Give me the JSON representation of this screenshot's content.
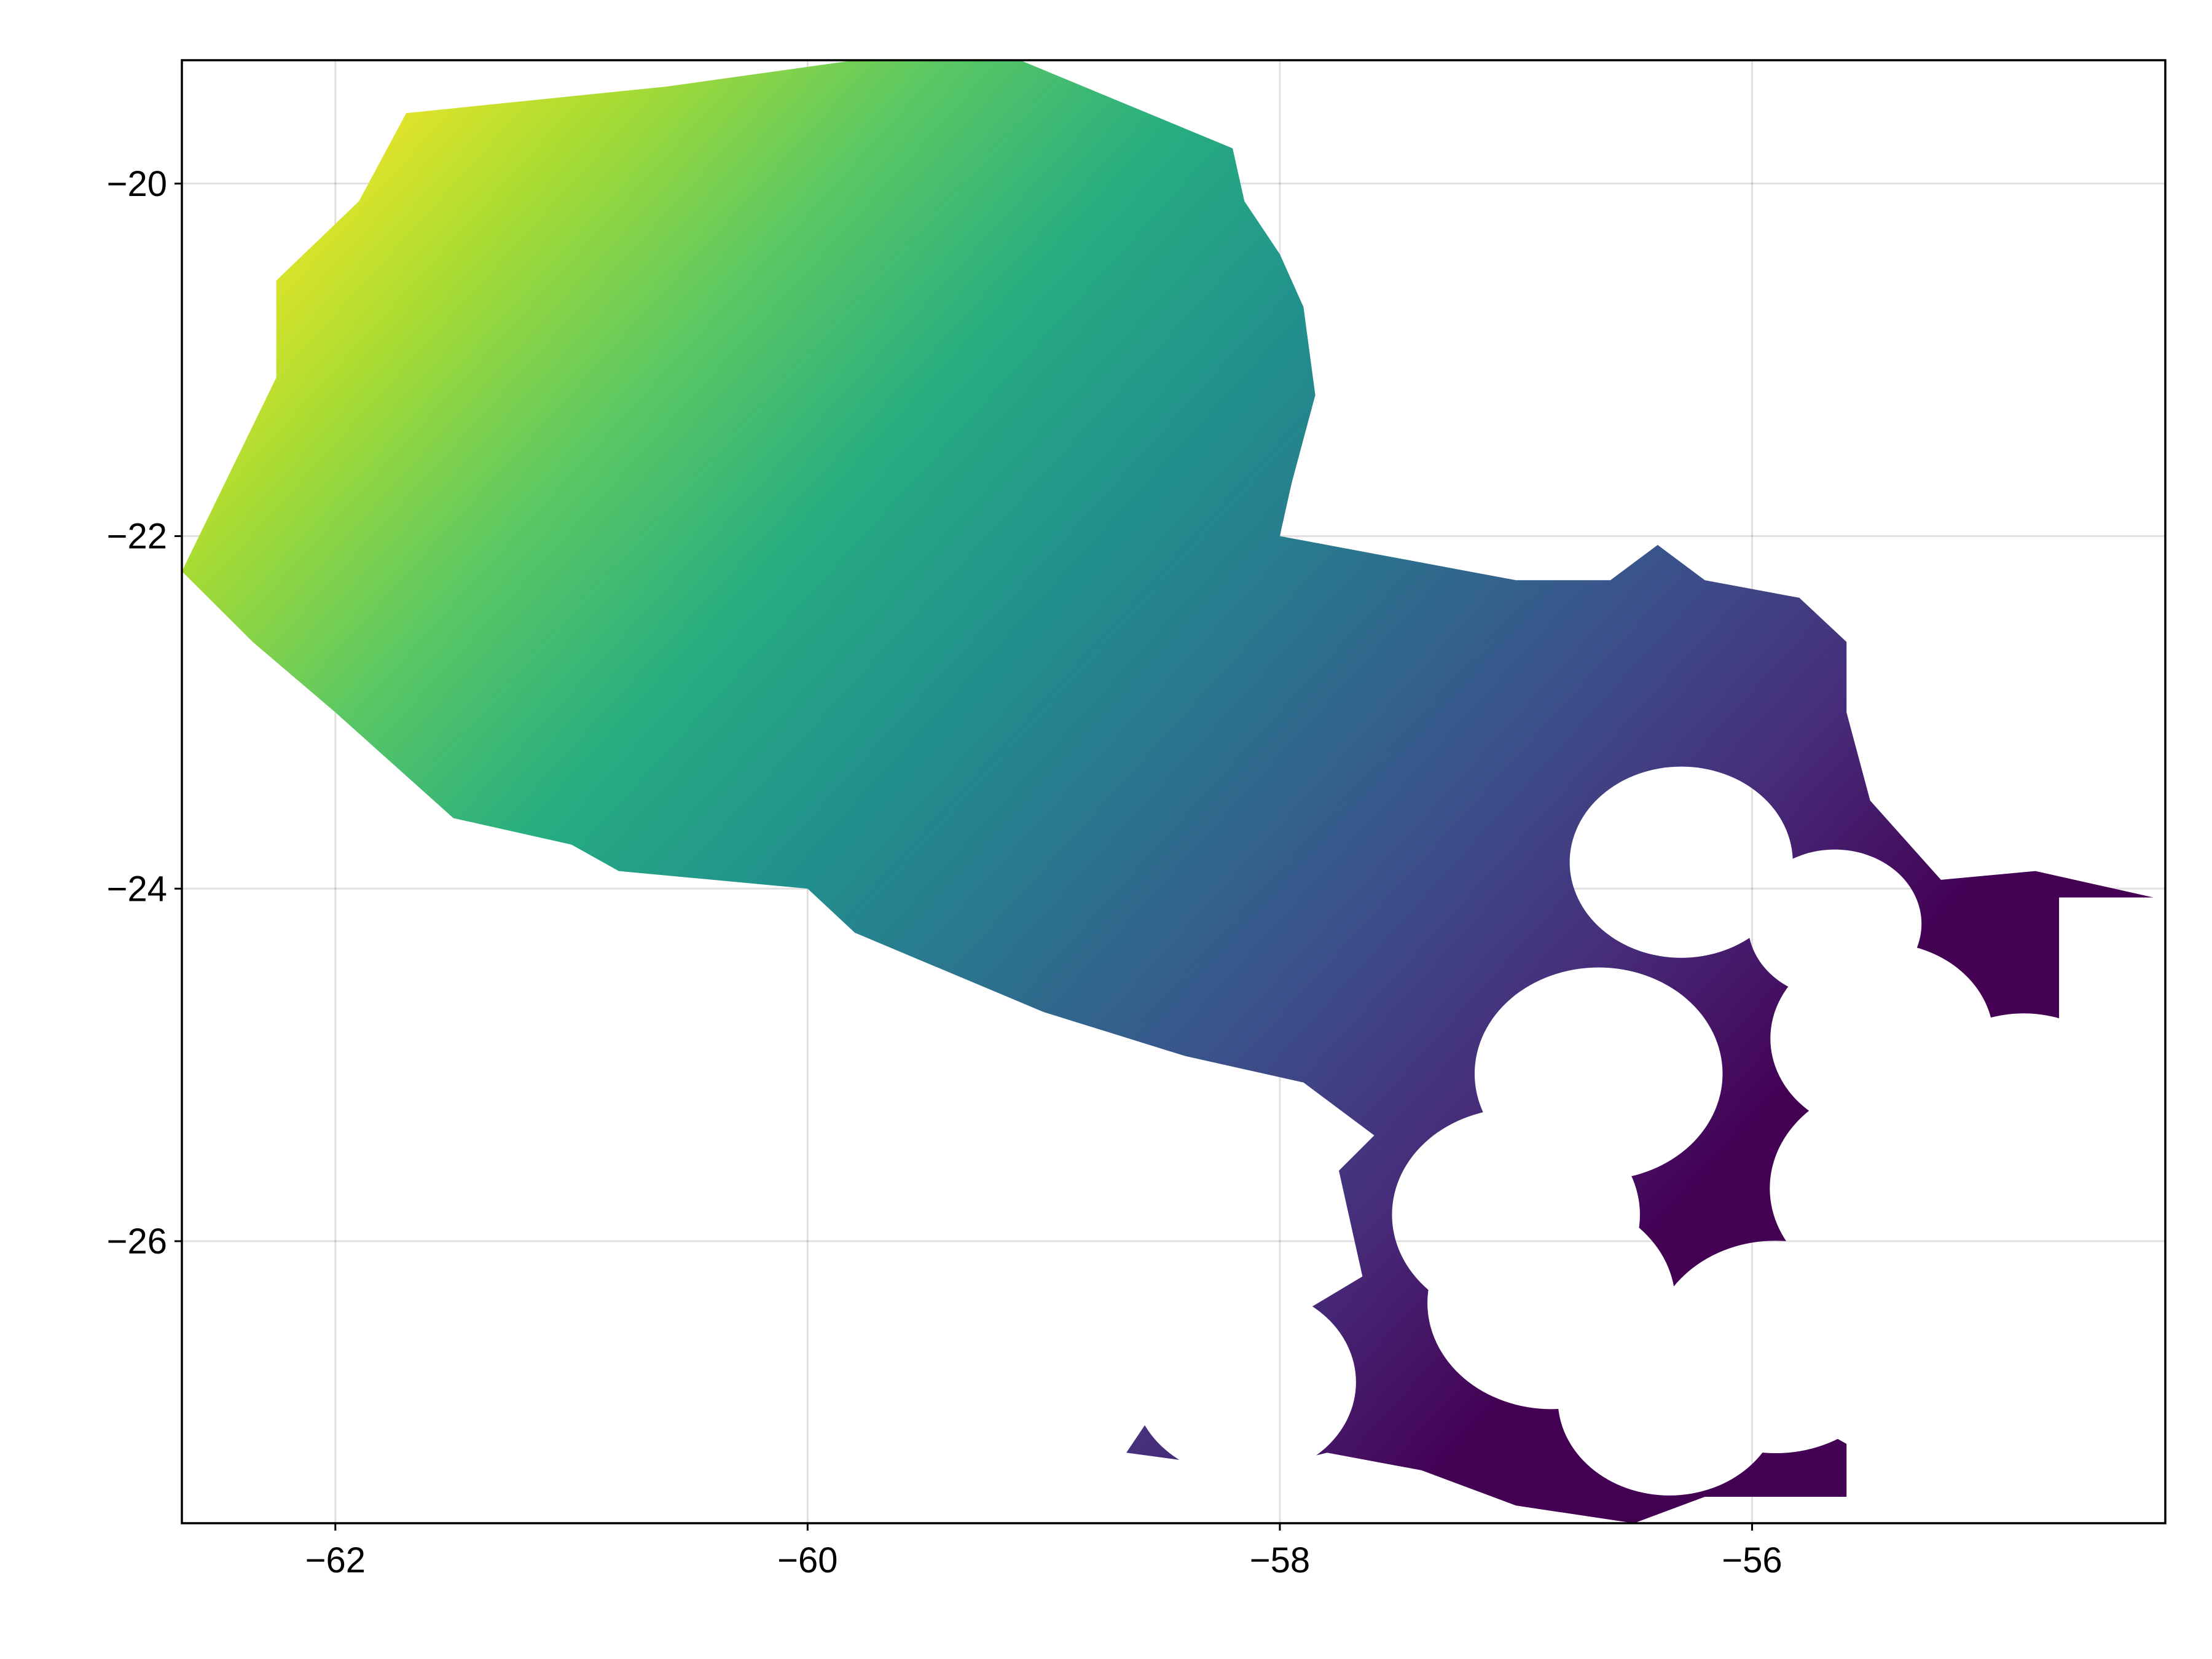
{
  "map": {
    "type": "heatmap",
    "title": "",
    "xlabel": "",
    "ylabel": "",
    "xlim": [
      -62.65,
      -54.25
    ],
    "ylim": [
      -27.6,
      -19.3
    ],
    "grid": true,
    "colormap": "viridis",
    "colormap_stops": [
      "#440154",
      "#472c7a",
      "#3b518b",
      "#2c718e",
      "#21908d",
      "#27ad81",
      "#5cc863",
      "#aadc32",
      "#fde725"
    ],
    "x_ticks": [
      {
        "value": -62,
        "label": "−62"
      },
      {
        "value": -60,
        "label": "−60"
      },
      {
        "value": -58,
        "label": "−58"
      },
      {
        "value": -56,
        "label": "−56"
      }
    ],
    "y_ticks": [
      {
        "value": -20,
        "label": "−20"
      },
      {
        "value": -22,
        "label": "−22"
      },
      {
        "value": -24,
        "label": "−24"
      },
      {
        "value": -26,
        "label": "−26"
      }
    ],
    "region_outline": [
      [
        -62.65,
        -22.2
      ],
      [
        -62.25,
        -21.1
      ],
      [
        -62.25,
        -20.55
      ],
      [
        -61.9,
        -20.1
      ],
      [
        -61.7,
        -19.6
      ],
      [
        -60.6,
        -19.45
      ],
      [
        -59.8,
        -19.3
      ],
      [
        -59.1,
        -19.3
      ],
      [
        -58.2,
        -19.8
      ],
      [
        -58.15,
        -20.1
      ],
      [
        -58.0,
        -20.4
      ],
      [
        -57.9,
        -20.7
      ],
      [
        -57.85,
        -21.2
      ],
      [
        -57.95,
        -21.7
      ],
      [
        -58.0,
        -22.0
      ],
      [
        -57.6,
        -22.1
      ],
      [
        -57.0,
        -22.25
      ],
      [
        -56.6,
        -22.25
      ],
      [
        -56.4,
        -22.05
      ],
      [
        -56.2,
        -22.25
      ],
      [
        -55.8,
        -22.35
      ],
      [
        -55.6,
        -22.6
      ],
      [
        -55.6,
        -23.0
      ],
      [
        -55.5,
        -23.5
      ],
      [
        -55.2,
        -23.95
      ],
      [
        -54.8,
        -23.9
      ],
      [
        -54.3,
        -24.05
      ],
      [
        -54.7,
        -24.05
      ],
      [
        -54.7,
        -25.2
      ],
      [
        -55.2,
        -25.2
      ],
      [
        -55.5,
        -25.25
      ],
      [
        -55.45,
        -25.9
      ],
      [
        -55.1,
        -26.05
      ],
      [
        -54.85,
        -26.1
      ],
      [
        -55.2,
        -26.1
      ],
      [
        -55.8,
        -26.0
      ],
      [
        -55.9,
        -26.5
      ],
      [
        -55.8,
        -27.0
      ],
      [
        -55.6,
        -27.15
      ],
      [
        -55.6,
        -27.45
      ],
      [
        -56.2,
        -27.45
      ],
      [
        -56.5,
        -27.6
      ],
      [
        -57.0,
        -27.5
      ],
      [
        -57.4,
        -27.3
      ],
      [
        -57.8,
        -27.2
      ],
      [
        -58.1,
        -27.3
      ],
      [
        -58.65,
        -27.2
      ],
      [
        -58.55,
        -27.0
      ],
      [
        -58.0,
        -26.7
      ],
      [
        -57.9,
        -26.4
      ],
      [
        -57.65,
        -26.2
      ],
      [
        -57.75,
        -25.6
      ],
      [
        -57.6,
        -25.4
      ],
      [
        -57.9,
        -25.1
      ],
      [
        -58.4,
        -24.95
      ],
      [
        -59.0,
        -24.7
      ],
      [
        -59.8,
        -24.25
      ],
      [
        -60.0,
        -24.0
      ],
      [
        -60.8,
        -23.9
      ],
      [
        -61.0,
        -23.75
      ],
      [
        -61.5,
        -23.6
      ],
      [
        -62.0,
        -23.0
      ],
      [
        -62.35,
        -22.6
      ]
    ],
    "masked_circles": [
      {
        "x": -56.3,
        "y": -23.85,
        "r": 0.45
      },
      {
        "x": -55.65,
        "y": -24.2,
        "r": 0.35
      },
      {
        "x": -55.45,
        "y": -24.85,
        "r": 0.45
      },
      {
        "x": -56.65,
        "y": -25.05,
        "r": 0.5
      },
      {
        "x": -57.0,
        "y": -25.85,
        "r": 0.5
      },
      {
        "x": -56.85,
        "y": -26.35,
        "r": 0.5
      },
      {
        "x": -55.4,
        "y": -25.7,
        "r": 0.5
      },
      {
        "x": -54.85,
        "y": -25.25,
        "r": 0.45
      },
      {
        "x": -54.5,
        "y": -25.95,
        "r": 0.5
      },
      {
        "x": -55.9,
        "y": -26.6,
        "r": 0.5
      },
      {
        "x": -58.15,
        "y": -26.8,
        "r": 0.45
      },
      {
        "x": -56.35,
        "y": -26.9,
        "r": 0.45
      }
    ]
  }
}
